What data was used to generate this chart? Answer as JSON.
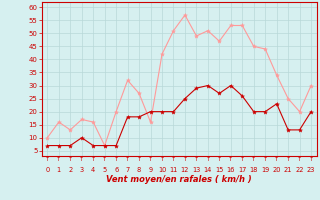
{
  "hours": [
    0,
    1,
    2,
    3,
    4,
    5,
    6,
    7,
    8,
    9,
    10,
    11,
    12,
    13,
    14,
    15,
    16,
    17,
    18,
    19,
    20,
    21,
    22,
    23
  ],
  "vent_moyen": [
    7,
    7,
    7,
    10,
    7,
    7,
    7,
    18,
    18,
    20,
    20,
    20,
    25,
    29,
    30,
    27,
    30,
    26,
    20,
    20,
    23,
    13,
    13,
    20
  ],
  "vent_rafales": [
    10,
    16,
    13,
    17,
    16,
    7,
    20,
    32,
    27,
    16,
    42,
    51,
    57,
    49,
    51,
    47,
    53,
    53,
    45,
    44,
    34,
    25,
    20,
    30
  ],
  "bg_color": "#d6f0f0",
  "grid_color": "#b8d8d8",
  "line_moyen_color": "#cc0000",
  "line_rafales_color": "#ff9999",
  "xlabel": "Vent moyen/en rafales ( km/h )",
  "ylabel_ticks": [
    5,
    10,
    15,
    20,
    25,
    30,
    35,
    40,
    45,
    50,
    55,
    60
  ],
  "ylim": [
    3,
    62
  ],
  "xlim": [
    -0.5,
    23.5
  ],
  "arrow_symbols": [
    "↱",
    "↱",
    "↱",
    "↱",
    "↱",
    "↱",
    "↱",
    "↱",
    "↱",
    "↱",
    "↑",
    "↑",
    "↑",
    "↑",
    "↑",
    "↑",
    "↑",
    "↑",
    "↑",
    "↑",
    "↑",
    "↑",
    "↑",
    "↑"
  ]
}
